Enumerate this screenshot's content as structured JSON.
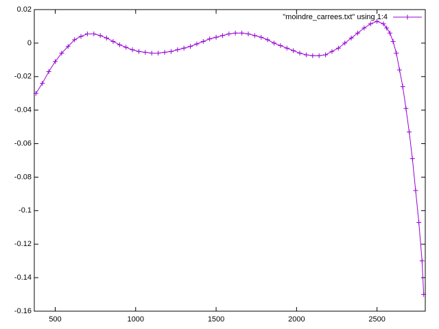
{
  "chart_data": {
    "type": "line",
    "x": [
      380,
      420,
      460,
      500,
      540,
      580,
      620,
      660,
      700,
      740,
      780,
      820,
      860,
      900,
      940,
      980,
      1020,
      1060,
      1100,
      1140,
      1180,
      1220,
      1260,
      1300,
      1340,
      1380,
      1420,
      1460,
      1500,
      1540,
      1580,
      1620,
      1660,
      1700,
      1740,
      1780,
      1820,
      1860,
      1900,
      1940,
      1980,
      2020,
      2060,
      2100,
      2140,
      2180,
      2220,
      2260,
      2300,
      2340,
      2380,
      2420,
      2460,
      2500,
      2540,
      2560,
      2580,
      2600,
      2620,
      2640,
      2660,
      2680,
      2700,
      2720,
      2740,
      2760,
      2780,
      2790
    ],
    "series": [
      {
        "name": "\"moindre_carrees.txt\"  using 1:4",
        "color": "#9400d3",
        "values": [
          -0.03,
          -0.024,
          -0.017,
          -0.011,
          -0.006,
          -0.002,
          0.002,
          0.004,
          0.0055,
          0.0055,
          0.0045,
          0.003,
          0.001,
          -0.001,
          -0.0025,
          -0.004,
          -0.005,
          -0.0055,
          -0.006,
          -0.006,
          -0.0055,
          -0.005,
          -0.004,
          -0.003,
          -0.002,
          -0.0005,
          0.001,
          0.0025,
          0.0035,
          0.0045,
          0.0055,
          0.006,
          0.006,
          0.0055,
          0.0045,
          0.0035,
          0.002,
          0,
          -0.0015,
          -0.003,
          -0.0045,
          -0.006,
          -0.007,
          -0.0075,
          -0.0075,
          -0.007,
          -0.005,
          -0.003,
          0,
          0.003,
          0.006,
          0.009,
          0.0115,
          0.013,
          0.0115,
          0.009,
          0.006,
          0.001,
          -0.006,
          -0.016,
          -0.026,
          -0.039,
          -0.053,
          -0.069,
          -0.088,
          -0.107,
          -0.13,
          -0.15
        ]
      }
    ],
    "xlim": [
      370,
      2800
    ],
    "ylim": [
      -0.16,
      0.02
    ],
    "xticks": [
      500,
      1000,
      1500,
      2000,
      2500
    ],
    "yticks": [
      0.02,
      0,
      -0.02,
      -0.04,
      -0.06,
      -0.08,
      -0.1,
      -0.12,
      -0.14,
      -0.16
    ],
    "legend": "top-right"
  }
}
